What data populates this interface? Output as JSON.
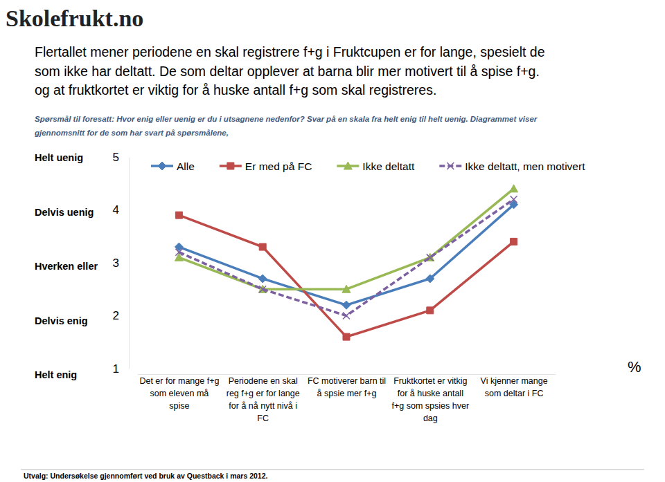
{
  "chart_data": {
    "type": "line",
    "logo_text": "Skolefrukt.no",
    "title": [
      "Flertallet mener periodene en skal registrere f+g i Fruktcupen er for lange, spesielt de",
      "som ikke har deltatt. De som deltar opplever at barna blir mer motivert til å spise f+g.",
      "og at fruktkortet er viktig for å huske antall f+g som skal registreres."
    ],
    "subtitle": [
      "Spørsmål  til foresatt: Hvor enig eller uenig er du i utsagnene nedenfor? Svar på en skala fra helt enig til helt uenig. Diagrammet viser",
      "gjennomsnitt for de som har svart på spørsmålene,"
    ],
    "categories": [
      "Det er for mange f+g som eleven må spise",
      "Periodene en skal reg f+g er for lange for å nå nytt nivå i FC",
      "FC motiverer barn til å spsie mer f+g",
      "Fruktkortet er vitkig for å huske antall f+g som spsies hver dag",
      "Vi kjenner mange som deltar i FC"
    ],
    "series": [
      {
        "name": "Alle",
        "color": "#4a7ebb",
        "marker": "diamond",
        "line_style": "solid",
        "values": [
          3.3,
          2.7,
          2.2,
          2.7,
          4.1
        ]
      },
      {
        "name": "Er med på FC",
        "color": "#be4b48",
        "marker": "square",
        "line_style": "solid",
        "values": [
          3.9,
          3.3,
          1.6,
          2.1,
          3.4
        ]
      },
      {
        "name": "Ikke deltatt",
        "color": "#98b954",
        "marker": "triangle",
        "line_style": "solid",
        "values": [
          3.1,
          2.5,
          2.5,
          3.1,
          4.4
        ]
      },
      {
        "name": "Ikke deltatt, men motivert",
        "color": "#7d60a0",
        "marker": "x",
        "line_style": "dashed",
        "values": [
          3.2,
          2.5,
          2.0,
          3.1,
          4.2
        ]
      }
    ],
    "ylim": [
      1,
      5
    ],
    "yticks": [
      1,
      2,
      3,
      4,
      5
    ],
    "y_labels": [
      "Helt enig",
      "Delvis enig",
      "Hverken eller",
      "Delvis uenig",
      "Helt uenig"
    ],
    "unit_note": "%",
    "footnote": "Utvalg: Undersøkelse gjennomført ved bruk av Questback i mars 2012.",
    "legend": "top",
    "grid": false
  }
}
